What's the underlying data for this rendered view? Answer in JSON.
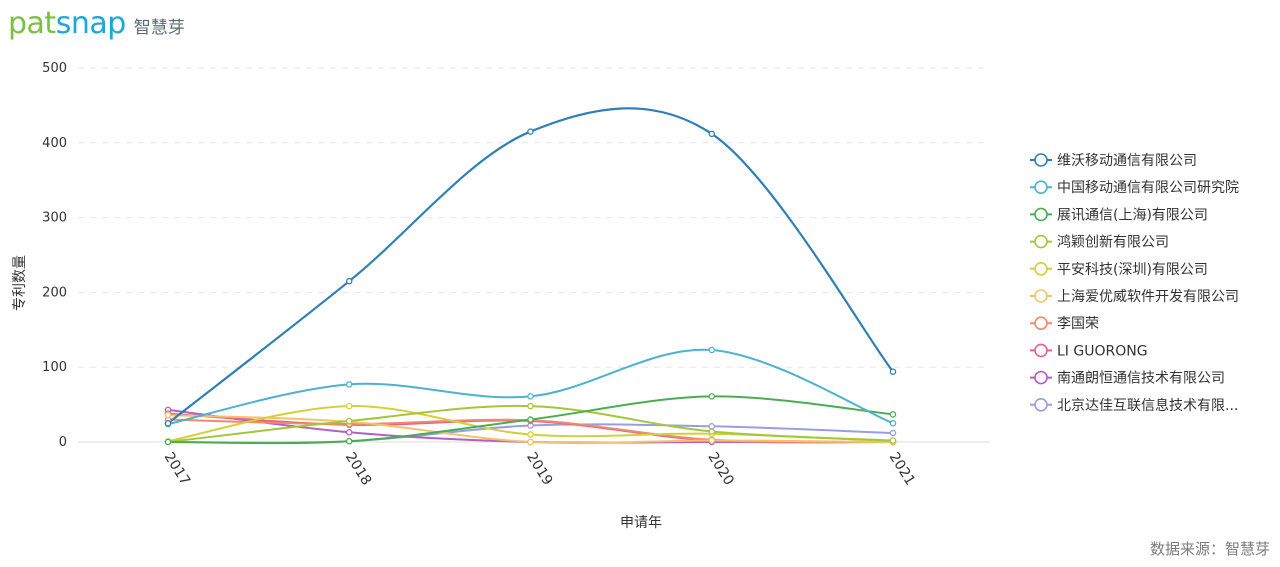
{
  "brand": {
    "name_part1": "pat",
    "name_part2": "snap",
    "cn_name": "智慧芽"
  },
  "source_note": "数据来源：智慧芽",
  "chart_data": {
    "type": "line",
    "title": "",
    "xlabel": "申请年",
    "ylabel": "专利数量",
    "ylim": [
      0,
      500
    ],
    "yticks": [
      0,
      100,
      200,
      300,
      400,
      500
    ],
    "grid": true,
    "legend_position": "right",
    "categories": [
      "2017",
      "2018",
      "2019",
      "2020",
      "2021"
    ],
    "series": [
      {
        "name": "维沃移动通信有限公司",
        "color": "#2e7fb8",
        "values": [
          25,
          215,
          415,
          412,
          94
        ]
      },
      {
        "name": "中国移动通信有限公司研究院",
        "color": "#4bb3cf",
        "values": [
          24,
          77,
          61,
          123,
          25
        ]
      },
      {
        "name": "展讯通信(上海)有限公司",
        "color": "#4aad52",
        "values": [
          0,
          1,
          30,
          61,
          37
        ]
      },
      {
        "name": "鸿颖创新有限公司",
        "color": "#a4c639",
        "values": [
          0,
          28,
          48,
          14,
          2
        ]
      },
      {
        "name": "平安科技(深圳)有限公司",
        "color": "#d4cf3b",
        "values": [
          1,
          48,
          10,
          11,
          1
        ]
      },
      {
        "name": "上海爱优威软件开发有限公司",
        "color": "#f2c36b",
        "values": [
          36,
          27,
          0,
          2,
          0
        ]
      },
      {
        "name": "李国荣",
        "color": "#f08a6c",
        "values": [
          30,
          24,
          29,
          3,
          0
        ]
      },
      {
        "name": "LI GUORONG",
        "color": "#e8608a",
        "values": [
          38,
          23,
          28,
          2,
          0
        ]
      },
      {
        "name": "南通朗恒通信技术有限公司",
        "color": "#b45fc4",
        "values": [
          43,
          13,
          0,
          0,
          0
        ]
      },
      {
        "name": "北京达佳互联信息技术有限...",
        "color": "#9a9ee0",
        "values": [
          0,
          1,
          22,
          21,
          12
        ]
      }
    ]
  }
}
